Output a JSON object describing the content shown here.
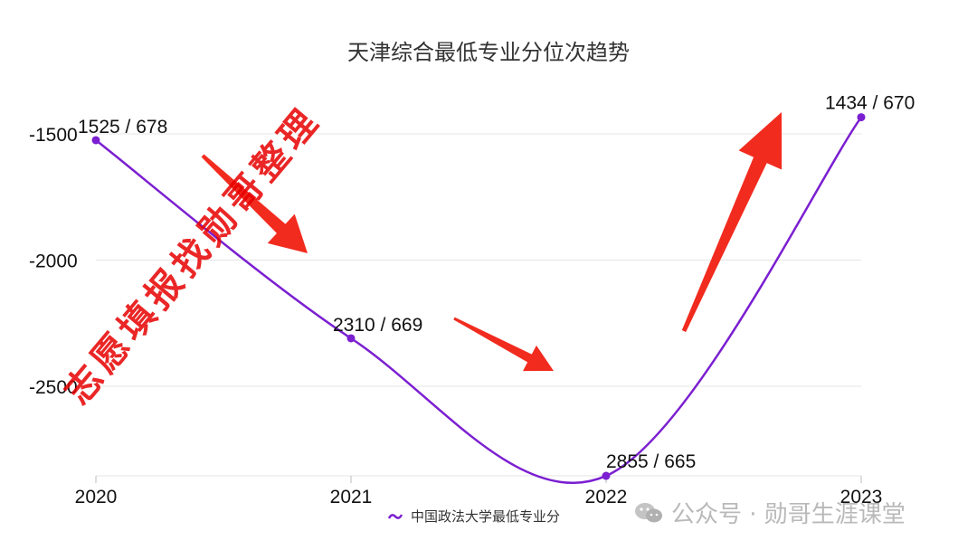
{
  "chart_data": {
    "type": "line",
    "title": "天津综合最低专业分位次趋势",
    "categories": [
      "2020",
      "2021",
      "2022",
      "2023"
    ],
    "series": [
      {
        "name": "中国政法大学最低专业分",
        "values": [
          -1525,
          -2310,
          -2855,
          -1434
        ],
        "labels": [
          "1525 / 678",
          "2310 / 669",
          "2855 / 665",
          "1434 / 670"
        ],
        "scores": [
          678,
          669,
          665,
          670
        ]
      }
    ],
    "yticks": [
      "-1500",
      "-2000",
      "-2500"
    ],
    "ylim": [
      -2855,
      -1434
    ],
    "grid": true,
    "legend_position": "bottom",
    "line_color": "#7b1fd1",
    "arrow_color": "#f22b1f",
    "annotations": [
      "down-arrow",
      "down-arrow",
      "up-arrow"
    ]
  },
  "footer": {
    "icon": "wechat-icon",
    "text": "公众号 · 勋哥生涯课堂"
  },
  "watermark": {
    "text": "志愿填报找勋哥整理",
    "color": "#e60000"
  }
}
